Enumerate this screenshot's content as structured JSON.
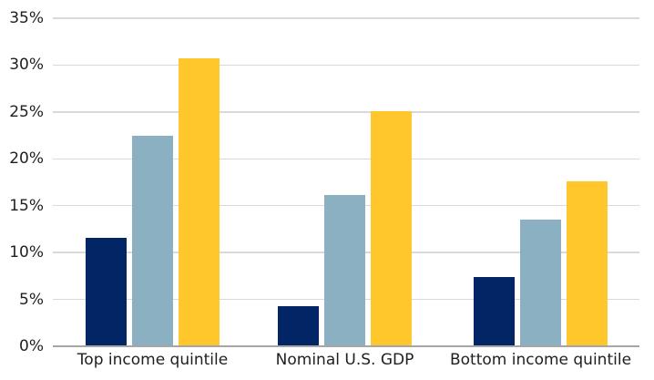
{
  "chart": {
    "background_color": "#ffffff",
    "grid_color": "#d9d9d9",
    "baseline_color": "#a6a6a6",
    "text_color": "#1f1f1f",
    "legend_visible": false,
    "title": ""
  },
  "chart_data": {
    "type": "bar",
    "title": "",
    "xlabel": "",
    "ylabel": "",
    "categories": [
      "Top income quintile",
      "Nominal U.S. GDP",
      "Bottom income quintile"
    ],
    "series": [
      {
        "name": "series-1-navy",
        "color": "#022665",
        "values": [
          11.6,
          4.3,
          7.4
        ]
      },
      {
        "name": "series-2-slate",
        "color": "#8BB0C2",
        "values": [
          22.5,
          16.1,
          13.5
        ]
      },
      {
        "name": "series-3-gold",
        "color": "#FFC72C",
        "values": [
          30.7,
          25.1,
          17.6
        ]
      }
    ],
    "ylim": [
      0,
      35
    ],
    "ytick_step": 5,
    "ytick_labels": [
      "0%",
      "5%",
      "10%",
      "15%",
      "20%",
      "25%",
      "30%",
      "35%"
    ],
    "grid": true,
    "legend_position": "none"
  }
}
